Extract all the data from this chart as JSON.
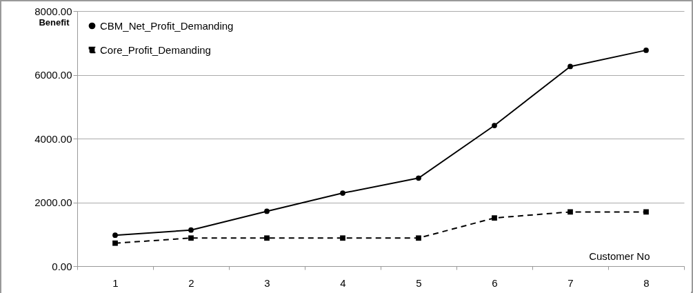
{
  "chart_data": {
    "type": "line",
    "xlabel": "Customer No",
    "ylabel": "Benefit",
    "categories": [
      "1",
      "2",
      "3",
      "4",
      "5",
      "6",
      "7",
      "8"
    ],
    "series": [
      {
        "name": "CBM_Net_Profit_Demanding",
        "color": "#000000",
        "marker": "circle",
        "line_style": "solid",
        "values": [
          970,
          1130,
          1720,
          2290,
          2760,
          4410,
          6260,
          6770
        ]
      },
      {
        "name": "Core_Profit_Demanding",
        "color": "#000000",
        "marker": "square",
        "line_style": "dashed",
        "values": [
          720,
          880,
          880,
          880,
          880,
          1510,
          1700,
          1700
        ]
      }
    ],
    "ylim": [
      0,
      8000
    ],
    "yticks": [
      {
        "value": 0,
        "label": "0.00"
      },
      {
        "value": 2000,
        "label": "2000.00"
      },
      {
        "value": 4000,
        "label": "4000.00"
      },
      {
        "value": 6000,
        "label": "6000.00"
      },
      {
        "value": 8000,
        "label": "8000.00"
      }
    ],
    "grid": "y",
    "legend": "top left"
  }
}
